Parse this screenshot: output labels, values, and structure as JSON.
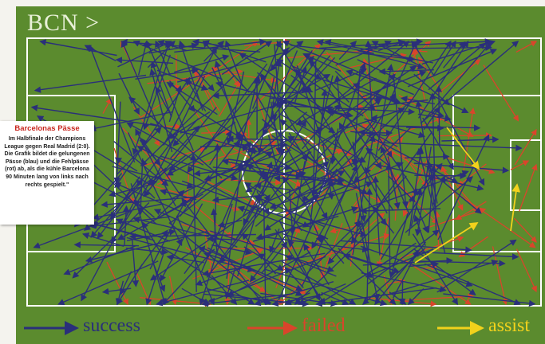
{
  "header": {
    "title": "BCN >"
  },
  "infobox": {
    "title": "Barcelonas Pässe",
    "text": "Im Halbfinale der Champions League gegen Real Madrid (2:0). Die Grafik bildet die gelungenen Pässe (blau) und die Fehlpässe (rot) ab, als die kühle Barcelona 90 Minuten lang von links nach rechts gespielt.\""
  },
  "legend": [
    {
      "label": "success",
      "color": "#2a2f7a"
    },
    {
      "label": "failed",
      "color": "#d9452b"
    },
    {
      "label": "assist",
      "color": "#f2d21c"
    }
  ],
  "colors": {
    "pitch": "#5b8b2e",
    "lines": "#ffffff",
    "success": "#2a2f7a",
    "failed": "#d9452b",
    "assist": "#f2d21c"
  },
  "chart_data": {
    "type": "scatter",
    "title": "BCN >",
    "series": [
      {
        "name": "success",
        "color": "#2a2f7a",
        "count_shown": "dense",
        "style": "arrows"
      },
      {
        "name": "failed",
        "color": "#d9452b",
        "count_shown": "moderate",
        "style": "arrows"
      },
      {
        "name": "assist",
        "color": "#f2d21c",
        "count_shown": "few",
        "style": "arrows"
      }
    ],
    "direction": "left-to-right",
    "legend_position": "bottom"
  }
}
